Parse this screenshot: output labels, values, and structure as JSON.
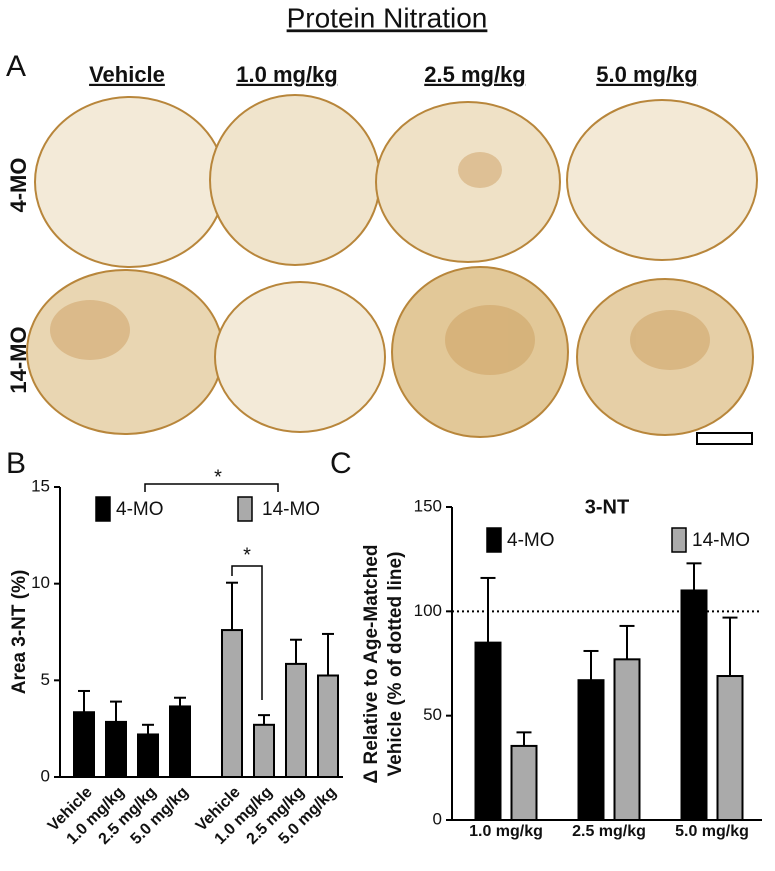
{
  "figure": {
    "title": "Protein Nitration",
    "panels": [
      "A",
      "B",
      "C"
    ],
    "columns": [
      "Vehicle",
      "1.0 mg/kg",
      "2.5 mg/kg",
      "5.0 mg/kg"
    ],
    "rows": [
      "4-MO",
      "14-MO"
    ]
  },
  "chart_data": [
    {
      "type": "bar",
      "ylabel": "Area 3-NT (%)",
      "categories": [
        "Vehicle",
        "1.0 mg/kg",
        "2.5 mg/kg",
        "5.0 mg/kg"
      ],
      "series": [
        {
          "name": "4-MO",
          "color": "#000000",
          "values": [
            3.35,
            2.85,
            2.2,
            3.65
          ],
          "errors": [
            1.1,
            1.05,
            0.5,
            0.45
          ]
        },
        {
          "name": "14-MO",
          "color": "#aaaaaa",
          "values": [
            7.6,
            2.7,
            5.85,
            5.25
          ],
          "errors": [
            2.45,
            0.5,
            1.25,
            2.15
          ]
        }
      ],
      "ylim": [
        0,
        15
      ],
      "yticks": [
        0,
        5,
        10,
        15
      ],
      "annotations": [
        "*",
        "*"
      ]
    },
    {
      "type": "bar",
      "title": "3-NT",
      "ylabel": [
        "Δ Relative to Age-Matched",
        "Vehicle (% of dotted line)"
      ],
      "categories": [
        "1.0 mg/kg",
        "2.5 mg/kg",
        "5.0 mg/kg"
      ],
      "series": [
        {
          "name": "4-MO",
          "color": "#000000",
          "values": [
            85,
            67,
            110
          ],
          "errors": [
            31,
            14,
            13
          ]
        },
        {
          "name": "14-MO",
          "color": "#aaaaaa",
          "values": [
            35.5,
            77,
            69
          ],
          "errors": [
            6.5,
            16,
            28
          ]
        }
      ],
      "ylim": [
        0,
        150
      ],
      "yticks": [
        0,
        50,
        100,
        150
      ],
      "reference_line": 100
    }
  ]
}
